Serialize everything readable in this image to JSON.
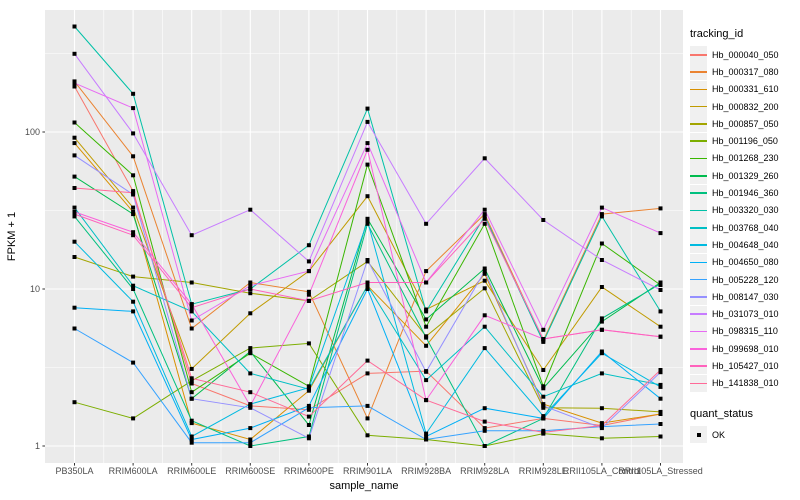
{
  "chart_data": {
    "type": "line",
    "title": "",
    "xlabel": "sample_name",
    "ylabel": "FPKM + 1",
    "yscale": "log10",
    "yticks": [
      1,
      10,
      100
    ],
    "ylim": [
      0.78,
      600
    ],
    "grid": "on",
    "panel_bg": "#EBEBEB",
    "grid_color": "#FFFFFF",
    "axis_text_color": "#4D4D4D",
    "point_shape": "filled-square",
    "point_color": "#000000",
    "legend_position": "right",
    "categories": [
      "PB350LA",
      "RRIM600LA",
      "RRIM600LE",
      "RRIM600SE",
      "RRIM600PE",
      "RRIM901LA",
      "RRIM928BA",
      "RRIM928LA",
      "RRIM928LE",
      "RRII105LA_Control",
      "RRII105LA_Stressed"
    ],
    "legend_title": "tracking_id",
    "series": [
      {
        "name": "Hb_000040_050",
        "color": "#F8766D",
        "values": [
          195,
          42,
          2.5,
          1.8,
          1.7,
          2.9,
          3.0,
          1.3,
          1.5,
          1.35,
          1.6
        ]
      },
      {
        "name": "Hb_000317_080",
        "color": "#EA8331",
        "values": [
          210,
          70,
          5.6,
          11,
          9.6,
          1.5,
          13,
          30,
          4.7,
          30,
          32.6
        ]
      },
      {
        "name": "Hb_000331_610",
        "color": "#D89000",
        "values": [
          85,
          31,
          1.4,
          1.1,
          2.25,
          10.5,
          4.35,
          12.5,
          1.85,
          1.4,
          1.6
        ]
      },
      {
        "name": "Hb_000832_200",
        "color": "#C09B00",
        "values": [
          92,
          33,
          3.1,
          7,
          13,
          39,
          7.4,
          11.3,
          3.05,
          10.3,
          5.75
        ]
      },
      {
        "name": "Hb_000857_050",
        "color": "#A3A500",
        "values": [
          16,
          12,
          11,
          9.4,
          8.4,
          15,
          5.0,
          10.1,
          1.75,
          1.74,
          1.65
        ]
      },
      {
        "name": "Hb_001196_050",
        "color": "#7CAE00",
        "values": [
          1.9,
          1.5,
          2.6,
          4.2,
          4.5,
          1.17,
          1.1,
          1.0,
          1.2,
          1.12,
          1.15
        ]
      },
      {
        "name": "Hb_001268_230",
        "color": "#39B600",
        "values": [
          115,
          53,
          2.2,
          3.9,
          2.4,
          62,
          5.75,
          26,
          2.4,
          19.5,
          10.6
        ]
      },
      {
        "name": "Hb_001329_260",
        "color": "#00BB4E",
        "values": [
          52,
          30,
          2.0,
          4.0,
          1.36,
          28,
          6.4,
          13.5,
          2.33,
          6.2,
          11
        ]
      },
      {
        "name": "Hb_001946_360",
        "color": "#00C07F",
        "values": [
          29,
          10,
          1.45,
          1.0,
          1.15,
          26,
          4.9,
          1.0,
          1.5,
          6.5,
          10.8
        ]
      },
      {
        "name": "Hb_003320_030",
        "color": "#00C1A7",
        "values": [
          470,
          175,
          8,
          10,
          19,
          141,
          7.2,
          29,
          4.6,
          29,
          7.2
        ]
      },
      {
        "name": "Hb_003768_040",
        "color": "#00BFC4",
        "values": [
          33,
          10.5,
          7.2,
          2.9,
          2.3,
          10.5,
          2.63,
          5.75,
          2.06,
          2.9,
          2.45
        ]
      },
      {
        "name": "Hb_004648_040",
        "color": "#00BAE0",
        "values": [
          20,
          8.3,
          1.15,
          1.85,
          2.35,
          27,
          1.2,
          4.2,
          1.55,
          3.9,
          2.38
        ]
      },
      {
        "name": "Hb_004650_080",
        "color": "#00B0F6",
        "values": [
          7.6,
          7.2,
          1.1,
          1.3,
          1.8,
          10,
          1.15,
          1.74,
          1.5,
          4.0,
          2.0
        ]
      },
      {
        "name": "Hb_005228_120",
        "color": "#35A2FF",
        "values": [
          5.6,
          3.4,
          1.05,
          1.05,
          1.75,
          1.8,
          1.1,
          1.25,
          1.25,
          1.33,
          1.38
        ]
      },
      {
        "name": "Hb_008147_030",
        "color": "#9590FF",
        "values": [
          71,
          40,
          2.0,
          1.75,
          1.12,
          15.3,
          2.97,
          13,
          1.8,
          1.3,
          2.95
        ]
      },
      {
        "name": "Hb_031073_010",
        "color": "#C77CFF",
        "values": [
          315,
          98,
          22,
          32,
          15,
          116,
          26,
          68,
          27.5,
          15.3,
          9.85
        ]
      },
      {
        "name": "Hb_098315_110",
        "color": "#E76BF3",
        "values": [
          205,
          142,
          6.3,
          10.5,
          13,
          85,
          11,
          32,
          5.5,
          33,
          22.7
        ]
      },
      {
        "name": "Hb_099698_010",
        "color": "#FA62DB",
        "values": [
          31,
          23,
          8,
          1.8,
          9.2,
          77,
          1.96,
          6.8,
          4.8,
          5.5,
          4.97
        ]
      },
      {
        "name": "Hb_105427_010",
        "color": "#FF62BC",
        "values": [
          30,
          22,
          7.6,
          10,
          8.4,
          11,
          11,
          28,
          4.8,
          5.5,
          4.97
        ]
      },
      {
        "name": "Hb_141838_010",
        "color": "#FF6A98",
        "values": [
          44,
          41,
          2.7,
          2.2,
          1.54,
          3.5,
          1.96,
          1.43,
          1.22,
          1.35,
          3.05
        ]
      }
    ],
    "legend2_title": "quant_status",
    "legend2_items": [
      {
        "label": "OK"
      }
    ]
  }
}
